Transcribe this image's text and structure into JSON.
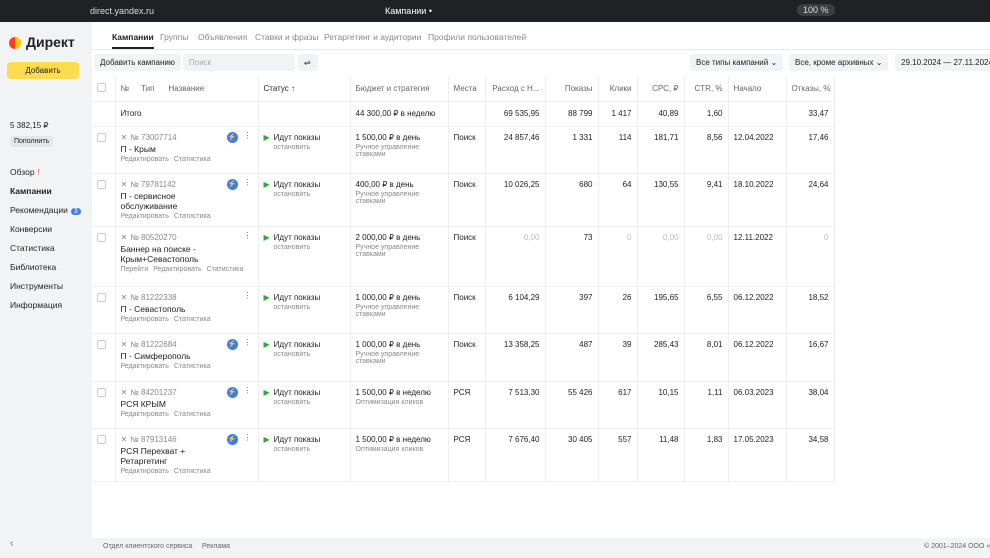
{
  "browser": {
    "url": "direct.yandex.ru",
    "tab_title": "Кампании •",
    "zoom": "100 %"
  },
  "sidebar": {
    "logo": "Директ",
    "add_button": "Добавить",
    "balance": "5 382,15 ₽",
    "top_up": "Пополнить",
    "nav": [
      "Обзор",
      "Кампании",
      "Рекомендации",
      "Конверсии",
      "Статистика",
      "Библиотека",
      "Инструменты",
      "Информация"
    ],
    "recommendations_badge": "3"
  },
  "tabs": [
    "Кампании",
    "Группы",
    "Объявления",
    "Ставки и фразы",
    "Ретаргетинг и аудитории",
    "Профили пользователей"
  ],
  "toolbar": {
    "add_campaign": "Добавить кампанию",
    "search_placeholder": "Поиск",
    "type_filter": "Все типы кампаний",
    "status_filter": "Все, кроме архивных",
    "date_range": "29.10.2024 — 27.11.2024"
  },
  "table": {
    "header": {
      "num": "№",
      "type": "Тип",
      "name": "Название",
      "status": "Статус ↑",
      "budget": "Бюджет и стратегия",
      "place": "Места",
      "spend": "Расход с Н...",
      "shows": "Показы",
      "clicks": "Клики",
      "cpc": "CPC, ₽",
      "ctr": "CTR, %",
      "start": "Начало",
      "bounce": "Отказы, %"
    },
    "total": {
      "label": "Итого",
      "budget": "44 300,00 ₽ в неделю",
      "spend": "69 535,95",
      "shows": "88 799",
      "clicks": "1 417",
      "cpc": "40,89",
      "ctr": "1,60",
      "bounce": "33,47"
    },
    "rows": [
      {
        "id": "№ 73007714",
        "name": "П - Крым",
        "links": [
          "Редактировать",
          "Статистика"
        ],
        "status": "Идут показы",
        "stop": "остановить",
        "budget": "1 500,00 ₽ в день",
        "strategy": "Ручное управление ставками",
        "place": "Поиск",
        "spend": "24 857,46",
        "shows": "1 331",
        "clicks": "114",
        "cpc": "181,71",
        "ctr": "8,56",
        "start": "12.04.2022",
        "bounce": "17,46"
      },
      {
        "id": "№ 79781142",
        "name": "П - сервисное обслуживание",
        "links": [
          "Редактировать",
          "Статистика"
        ],
        "status": "Идут показы",
        "stop": "остановить",
        "budget": "400,00 ₽ в день",
        "strategy": "Ручное управление ставками",
        "place": "Поиск",
        "spend": "10 026,25",
        "shows": "680",
        "clicks": "64",
        "cpc": "130,55",
        "ctr": "9,41",
        "start": "18.10.2022",
        "bounce": "24,64"
      },
      {
        "id": "№ 80520270",
        "name": "Баннер на поиске - Крым+Севастополь",
        "links": [
          "Перейти",
          "Редактировать",
          "Статистика"
        ],
        "status": "Идут показы",
        "stop": "остановить",
        "budget": "2 000,00 ₽ в день",
        "strategy": "Ручное управление ставками",
        "place": "Поиск",
        "spend": "0,00",
        "shows": "73",
        "clicks": "0",
        "cpc": "0,00",
        "ctr": "0,00",
        "start": "12.11.2022",
        "bounce": "0"
      },
      {
        "id": "№ 81222338",
        "name": "П - Севастополь",
        "links": [
          "Редактировать",
          "Статистика"
        ],
        "status": "Идут показы",
        "stop": "остановить",
        "budget": "1 000,00 ₽ в день",
        "strategy": "Ручное управление ставками",
        "place": "Поиск",
        "spend": "6 104,29",
        "shows": "397",
        "clicks": "26",
        "cpc": "195,65",
        "ctr": "6,55",
        "start": "06.12.2022",
        "bounce": "18,52"
      },
      {
        "id": "№ 81222684",
        "name": "П - Симферополь",
        "links": [
          "Редактировать",
          "Статистика"
        ],
        "status": "Идут показы",
        "stop": "остановить",
        "budget": "1 000,00 ₽ в день",
        "strategy": "Ручное управление ставками",
        "place": "Поиск",
        "spend": "13 358,25",
        "shows": "487",
        "clicks": "39",
        "cpc": "285,43",
        "ctr": "8,01",
        "start": "06.12.2022",
        "bounce": "16,67"
      },
      {
        "id": "№ 84201237",
        "name": "РСЯ КРЫМ",
        "links": [
          "Редактировать",
          "Статистика"
        ],
        "status": "Идут показы",
        "stop": "остановить",
        "budget": "1 500,00 ₽ в неделю",
        "strategy": "Оптимизация кликов",
        "place": "РСЯ",
        "spend": "7 513,30",
        "shows": "55 426",
        "clicks": "617",
        "cpc": "10,15",
        "ctr": "1,11",
        "start": "06.03.2023",
        "bounce": "38,04"
      },
      {
        "id": "№ 87913146",
        "name": "РСЯ Перехват + Ретаргетинг",
        "links": [
          "Редактировать",
          "Статистика"
        ],
        "status": "Идут показы",
        "stop": "остановить",
        "budget": "1 500,00 ₽ в неделю",
        "strategy": "Оптимизация кликов",
        "place": "РСЯ",
        "spend": "7 676,40",
        "shows": "30 405",
        "clicks": "557",
        "cpc": "11,48",
        "ctr": "1,83",
        "start": "17.05.2023",
        "bounce": "34,58"
      }
    ]
  },
  "footer": {
    "links": [
      "Отдел клиентского сервиса",
      "Реклама"
    ],
    "copyright": "© 2001–2024 ООО «Я"
  }
}
